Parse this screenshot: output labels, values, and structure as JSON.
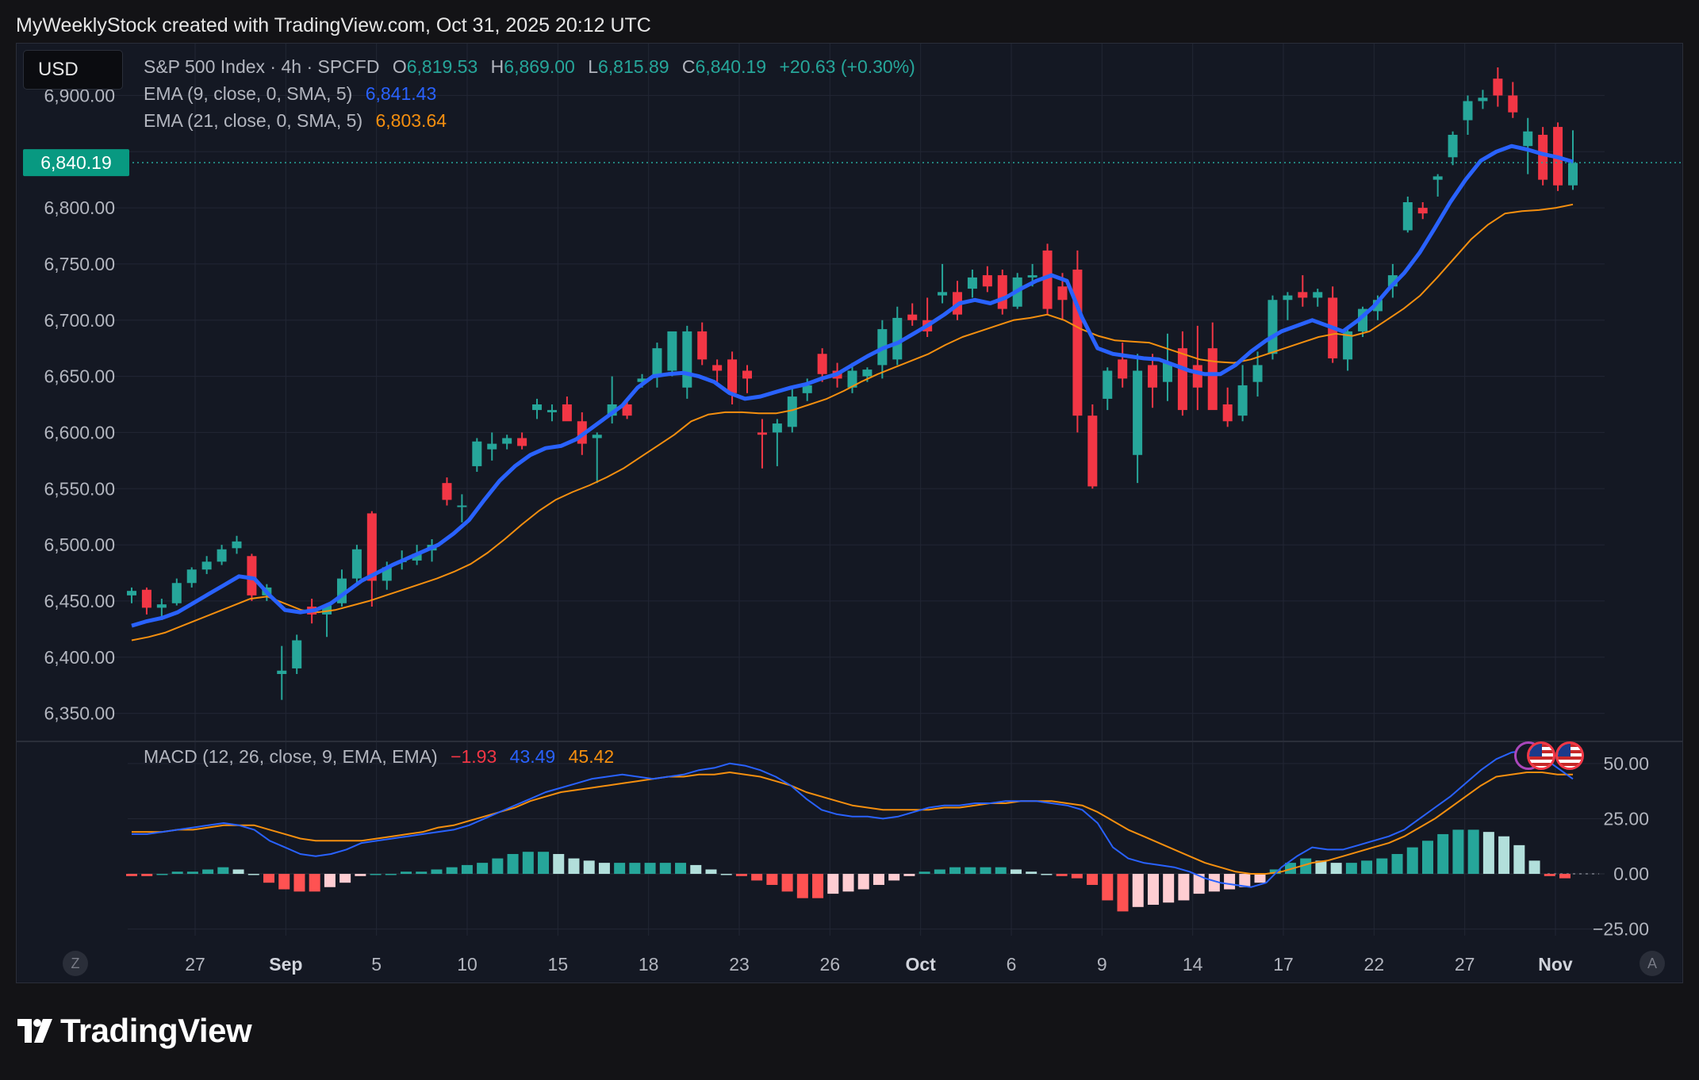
{
  "header": {
    "text": "MyWeeklyStock created with TradingView.com, Oct 31, 2025 20:12 UTC"
  },
  "currency": "USD",
  "legend": {
    "symbol": "S&P 500 Index · 4h · SPCFD",
    "o_label": "O",
    "o_value": "6,819.53",
    "h_label": "H",
    "h_value": "6,869.00",
    "l_label": "L",
    "l_value": "6,815.89",
    "c_label": "C",
    "c_value": "6,840.19",
    "change": "+20.63 (+0.30%)",
    "ema9_label": "EMA (9, close, 0, SMA, 5)",
    "ema9_value": "6,841.43",
    "ema21_label": "EMA (21, close, 0, SMA, 5)",
    "ema21_value": "6,803.64",
    "macd_label": "MACD (12, 26, close, 9, EMA, EMA)",
    "macd_hist": "−1.93",
    "macd_line": "43.49",
    "macd_signal": "45.42"
  },
  "colors": {
    "up": "#26a69a",
    "down": "#f23645",
    "ema9": "#2962ff",
    "ema21": "#f58f0f",
    "hist_up_strong": "#26a69a",
    "hist_up_weak": "#b2dfdb",
    "hist_dn_strong": "#ff5252",
    "hist_dn_weak": "#ffcdd2"
  },
  "logo": {
    "text": "TradingView"
  },
  "chart_data": [
    {
      "type": "candlestick",
      "title": "S&P 500 Index · 4h · SPCFD",
      "price_axis": {
        "min": 6325,
        "max": 6925,
        "ticks": [
          "6,350.00",
          "6,400.00",
          "6,450.00",
          "6,500.00",
          "6,550.00",
          "6,600.00",
          "6,650.00",
          "6,700.00",
          "6,750.00",
          "6,800.00",
          "6,900.00"
        ]
      },
      "last_price": "6,840.19",
      "time_axis": {
        "labels": [
          "27",
          "Sep",
          "5",
          "10",
          "15",
          "18",
          "23",
          "26",
          "Oct",
          "6",
          "9",
          "14",
          "17",
          "22",
          "27",
          "Nov"
        ],
        "bold": [
          "Sep",
          "Oct",
          "Nov"
        ]
      },
      "candles": [
        [
          6455,
          6462,
          6448,
          6459
        ],
        [
          6460,
          6462,
          6438,
          6444
        ],
        [
          6444,
          6452,
          6433,
          6447
        ],
        [
          6448,
          6470,
          6446,
          6466
        ],
        [
          6466,
          6480,
          6462,
          6478
        ],
        [
          6478,
          6490,
          6474,
          6485
        ],
        [
          6485,
          6500,
          6482,
          6496
        ],
        [
          6497,
          6508,
          6492,
          6503
        ],
        [
          6490,
          6492,
          6450,
          6455
        ],
        [
          6455,
          6465,
          6450,
          6462
        ],
        [
          6385,
          6410,
          6362,
          6388
        ],
        [
          6390,
          6420,
          6385,
          6415
        ],
        [
          6445,
          6452,
          6430,
          6438
        ],
        [
          6438,
          6448,
          6418,
          6446
        ],
        [
          6448,
          6478,
          6445,
          6470
        ],
        [
          6470,
          6500,
          6465,
          6496
        ],
        [
          6528,
          6530,
          6445,
          6468
        ],
        [
          6468,
          6485,
          6460,
          6480
        ],
        [
          6485,
          6495,
          6478,
          6486
        ],
        [
          6486,
          6500,
          6482,
          6492
        ],
        [
          6495,
          6505,
          6485,
          6500
        ],
        [
          6555,
          6560,
          6535,
          6540
        ],
        [
          6535,
          6545,
          6520,
          6535
        ],
        [
          6570,
          6595,
          6565,
          6592
        ],
        [
          6585,
          6600,
          6575,
          6590
        ],
        [
          6590,
          6598,
          6585,
          6595
        ],
        [
          6595,
          6600,
          6585,
          6588
        ],
        [
          6620,
          6630,
          6612,
          6625
        ],
        [
          6618,
          6625,
          6610,
          6620
        ],
        [
          6625,
          6632,
          6612,
          6610
        ],
        [
          6610,
          6618,
          6580,
          6590
        ],
        [
          6595,
          6600,
          6555,
          6598
        ],
        [
          6615,
          6650,
          6608,
          6625
        ],
        [
          6625,
          6630,
          6612,
          6615
        ],
        [
          6645,
          6652,
          6640,
          6648
        ],
        [
          6650,
          6680,
          6640,
          6675
        ],
        [
          6655,
          6685,
          6650,
          6690
        ],
        [
          6640,
          6695,
          6630,
          6690
        ],
        [
          6690,
          6698,
          6660,
          6665
        ],
        [
          6660,
          6665,
          6645,
          6655
        ],
        [
          6665,
          6672,
          6625,
          6635
        ],
        [
          6655,
          6660,
          6635,
          6648
        ],
        [
          6600,
          6612,
          6568,
          6598
        ],
        [
          6600,
          6612,
          6570,
          6608
        ],
        [
          6605,
          6640,
          6600,
          6632
        ],
        [
          6635,
          6648,
          6628,
          6642
        ],
        [
          6670,
          6675,
          6645,
          6652
        ],
        [
          6655,
          6662,
          6640,
          6648
        ],
        [
          6640,
          6662,
          6635,
          6655
        ],
        [
          6650,
          6658,
          6645,
          6656
        ],
        [
          6660,
          6700,
          6648,
          6692
        ],
        [
          6665,
          6712,
          6660,
          6702
        ],
        [
          6705,
          6715,
          6695,
          6700
        ],
        [
          6700,
          6720,
          6685,
          6690
        ],
        [
          6722,
          6750,
          6715,
          6725
        ],
        [
          6725,
          6735,
          6700,
          6705
        ],
        [
          6728,
          6745,
          6720,
          6738
        ],
        [
          6740,
          6748,
          6725,
          6730
        ],
        [
          6740,
          6745,
          6705,
          6710
        ],
        [
          6712,
          6742,
          6710,
          6738
        ],
        [
          6738,
          6750,
          6730,
          6740
        ],
        [
          6762,
          6768,
          6705,
          6710
        ],
        [
          6730,
          6742,
          6700,
          6718
        ],
        [
          6745,
          6762,
          6600,
          6615
        ],
        [
          6615,
          6625,
          6550,
          6552
        ],
        [
          6630,
          6658,
          6620,
          6655
        ],
        [
          6665,
          6680,
          6640,
          6648
        ],
        [
          6580,
          6670,
          6555,
          6655
        ],
        [
          6660,
          6670,
          6622,
          6640
        ],
        [
          6645,
          6688,
          6628,
          6662
        ],
        [
          6675,
          6690,
          6615,
          6620
        ],
        [
          6660,
          6695,
          6620,
          6640
        ],
        [
          6675,
          6698,
          6622,
          6620
        ],
        [
          6625,
          6640,
          6605,
          6610
        ],
        [
          6615,
          6660,
          6610,
          6642
        ],
        [
          6645,
          6672,
          6632,
          6660
        ],
        [
          6670,
          6722,
          6665,
          6718
        ],
        [
          6718,
          6725,
          6700,
          6722
        ],
        [
          6725,
          6740,
          6712,
          6720
        ],
        [
          6720,
          6728,
          6712,
          6725
        ],
        [
          6720,
          6730,
          6662,
          6666
        ],
        [
          6665,
          6695,
          6655,
          6690
        ],
        [
          6690,
          6712,
          6685,
          6710
        ],
        [
          6708,
          6722,
          6700,
          6718
        ],
        [
          6730,
          6750,
          6720,
          6740
        ],
        [
          6780,
          6810,
          6778,
          6805
        ],
        [
          6800,
          6805,
          6790,
          6795
        ],
        [
          6825,
          6830,
          6810,
          6828
        ],
        [
          6845,
          6868,
          6838,
          6865
        ],
        [
          6878,
          6900,
          6865,
          6895
        ],
        [
          6895,
          6905,
          6888,
          6898
        ],
        [
          6915,
          6925,
          6890,
          6900
        ],
        [
          6900,
          6912,
          6880,
          6885
        ],
        [
          6855,
          6880,
          6830,
          6868
        ],
        [
          6865,
          6872,
          6820,
          6825
        ],
        [
          6872,
          6876,
          6815,
          6820
        ],
        [
          6820,
          6869,
          6816,
          6840
        ]
      ],
      "ema9": [
        6428,
        6432,
        6435,
        6440,
        6448,
        6456,
        6464,
        6472,
        6470,
        6455,
        6442,
        6440,
        6442,
        6448,
        6458,
        6468,
        6475,
        6482,
        6488,
        6494,
        6500,
        6510,
        6522,
        6540,
        6557,
        6570,
        6580,
        6586,
        6588,
        6594,
        6604,
        6614,
        6624,
        6640,
        6650,
        6652,
        6653,
        6650,
        6645,
        6635,
        6630,
        6632,
        6636,
        6640,
        6643,
        6648,
        6652,
        6660,
        6668,
        6675,
        6680,
        6688,
        6696,
        6705,
        6715,
        6718,
        6715,
        6720,
        6728,
        6735,
        6740,
        6735,
        6702,
        6675,
        6670,
        6668,
        6666,
        6665,
        6660,
        6655,
        6652,
        6652,
        6660,
        6672,
        6682,
        6690,
        6695,
        6700,
        6695,
        6690,
        6700,
        6712,
        6728,
        6742,
        6760,
        6782,
        6805,
        6825,
        6842,
        6850,
        6855,
        6852,
        6848,
        6845,
        6841
      ],
      "ema21": [
        6415,
        6418,
        6422,
        6428,
        6434,
        6440,
        6446,
        6452,
        6454,
        6448,
        6442,
        6440,
        6442,
        6446,
        6450,
        6455,
        6460,
        6465,
        6470,
        6476,
        6483,
        6493,
        6505,
        6518,
        6530,
        6540,
        6547,
        6553,
        6560,
        6568,
        6578,
        6588,
        6598,
        6610,
        6616,
        6618,
        6618,
        6617,
        6617,
        6620,
        6625,
        6630,
        6637,
        6645,
        6652,
        6658,
        6664,
        6670,
        6678,
        6685,
        6690,
        6695,
        6700,
        6702,
        6705,
        6700,
        6692,
        6686,
        6682,
        6681,
        6680,
        6675,
        6670,
        6665,
        6663,
        6662,
        6665,
        6670,
        6675,
        6680,
        6685,
        6688,
        6686,
        6690,
        6700,
        6710,
        6722,
        6738,
        6755,
        6772,
        6785,
        6795,
        6797,
        6798,
        6800,
        6803
      ],
      "ema_series_names": [
        "EMA (9, close, 0, SMA, 5)",
        "EMA (21, close, 0, SMA, 5)"
      ]
    },
    {
      "type": "macd",
      "title": "MACD (12, 26, close, 9, EMA, EMA)",
      "y_axis": {
        "min": -28,
        "max": 60,
        "ticks": [
          "50.00",
          "25.00",
          "0.00",
          "−25.00"
        ]
      },
      "macd": [
        18,
        18,
        19,
        20,
        21,
        22,
        23,
        22,
        20,
        15,
        12,
        9,
        8,
        9,
        11,
        14,
        15,
        16,
        17,
        18,
        19,
        20,
        22,
        25,
        28,
        31,
        34,
        37,
        39,
        41,
        43,
        44,
        45,
        44,
        43,
        44,
        45,
        47,
        48,
        50,
        49,
        47,
        44,
        40,
        34,
        29,
        27,
        26,
        26,
        25,
        26,
        28,
        30,
        31,
        31,
        32,
        32,
        33,
        33,
        33,
        32,
        31,
        29,
        23,
        12,
        7,
        5,
        4,
        3,
        1,
        -2,
        -4,
        -5,
        -6,
        -4,
        3,
        8,
        12,
        11,
        11,
        13,
        15,
        17,
        20,
        25,
        30,
        35,
        41,
        47,
        52,
        55,
        56,
        53,
        48,
        43
      ],
      "signal": [
        19,
        19,
        19,
        20,
        20,
        21,
        22,
        22,
        22,
        20,
        18,
        16,
        15,
        15,
        15,
        15,
        16,
        17,
        18,
        19,
        21,
        22,
        24,
        26,
        28,
        30,
        33,
        35,
        37,
        38,
        39,
        40,
        41,
        42,
        43,
        44,
        44,
        45,
        45,
        46,
        45,
        44,
        42,
        40,
        37,
        35,
        33,
        31,
        30,
        29,
        29,
        29,
        29,
        30,
        30,
        31,
        32,
        32,
        33,
        33,
        33,
        32,
        31,
        28,
        24,
        20,
        17,
        14,
        11,
        8,
        5,
        3,
        1,
        0,
        0,
        1,
        3,
        5,
        6,
        8,
        10,
        12,
        14,
        17,
        21,
        25,
        30,
        35,
        40,
        44,
        45,
        46,
        46,
        45,
        45
      ],
      "histogram": [
        -1,
        -1,
        0,
        1,
        1,
        2,
        3,
        2,
        0,
        -4,
        -7,
        -8,
        -8,
        -6,
        -4,
        -1,
        0,
        0,
        1,
        1,
        2,
        3,
        4,
        5,
        7,
        9,
        10,
        10,
        9,
        7,
        6,
        5,
        5,
        5,
        5,
        5,
        5,
        4,
        2,
        0,
        -1,
        -3,
        -5,
        -8,
        -11,
        -11,
        -9,
        -8,
        -7,
        -5,
        -3,
        -1,
        1,
        2,
        3,
        3,
        3,
        3,
        2,
        1,
        0,
        -1,
        -2,
        -5,
        -12,
        -17,
        -15,
        -14,
        -13,
        -12,
        -9,
        -8,
        -7,
        -6,
        -4,
        2,
        5,
        7,
        6,
        5,
        5,
        6,
        7,
        9,
        12,
        15,
        18,
        20,
        20,
        19,
        17,
        13,
        6,
        -1,
        -2
      ]
    }
  ]
}
